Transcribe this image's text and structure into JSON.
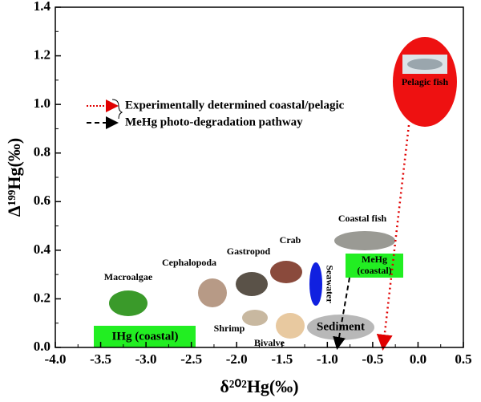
{
  "chart_data": {
    "type": "scatter",
    "xlabel": "δ²⁰²Hg(‰)",
    "ylabel": "Δ¹⁹⁹Hg(‰)",
    "xlim": [
      -4,
      0.5
    ],
    "xticks": [
      {
        "value": -4,
        "label": "-4.0"
      },
      -3.5,
      {
        "value": -3,
        "label": "-3.0"
      },
      -2.5,
      {
        "value": -2,
        "label": "-2.0"
      },
      -1.5,
      {
        "value": -1,
        "label": "-1.0"
      },
      -0.5,
      {
        "value": 0,
        "label": "0.0"
      },
      0.5
    ],
    "ylim": [
      0,
      1.4
    ],
    "yticks": [
      {
        "value": 0,
        "label": "0.0"
      },
      0.2,
      0.4,
      0.6,
      0.8,
      {
        "value": 1,
        "label": "1.0"
      },
      1.2,
      1.4
    ],
    "legend": [
      {
        "name": "Experimentally determined coastal/pelagic",
        "color": "#e00000"
      },
      {
        "name": "MeHg photo-degradation pathway",
        "color": "#000000"
      }
    ],
    "labels": {
      "macroalgae": "Macroalgae",
      "cephalopoda": "Cephalopoda",
      "gastropod": "Gastropod",
      "crab": "Crab",
      "coastal_fish": "Coastal fish",
      "shrimp": "Shrimp",
      "bivalve": "Bivalve",
      "seawater": "Seawater",
      "sediment": "Sediment",
      "ihg": "IHg (coastal)",
      "mehg": [
        "MeHg",
        "(coastal)"
      ],
      "pelagic_fish": "Pelagic fish"
    }
  }
}
